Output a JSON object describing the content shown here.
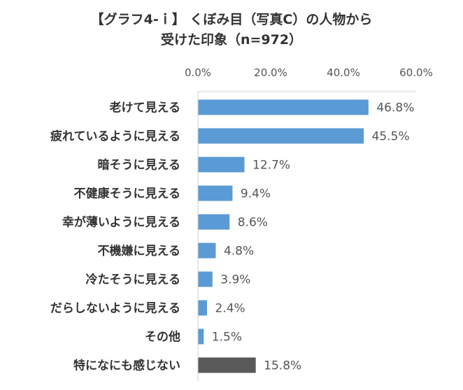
{
  "title_lines": [
    "【グラフ4-ｉ】 くぼみ目（写真C）の人物から",
    "受けた印象（n=972）"
  ],
  "colors": {
    "default": "#5b9bd5",
    "highlight": "#595959"
  },
  "chart_data": {
    "type": "bar",
    "orientation": "horizontal",
    "title": "【グラフ4-ｉ】 くぼみ目（写真C）の人物から受けた印象（n=972）",
    "categories": [
      "老けて見える",
      "疲れているように見える",
      "暗そうに見える",
      "不健康そうに見える",
      "幸が薄いように見える",
      "不機嫌に見える",
      "冷たそうに見える",
      "だらしないように見える",
      "その他",
      "特になにも感じない"
    ],
    "values": [
      46.8,
      45.5,
      12.7,
      9.4,
      8.6,
      4.8,
      3.9,
      2.4,
      1.5,
      15.8
    ],
    "value_labels": [
      "46.8%",
      "45.5%",
      "12.7%",
      "9.4%",
      "8.6%",
      "4.8%",
      "3.9%",
      "2.4%",
      "1.5%",
      "15.8%"
    ],
    "bar_colors": [
      "#5b9bd5",
      "#5b9bd5",
      "#5b9bd5",
      "#5b9bd5",
      "#5b9bd5",
      "#5b9bd5",
      "#5b9bd5",
      "#5b9bd5",
      "#5b9bd5",
      "#595959"
    ],
    "xlim": [
      0,
      60
    ],
    "xticks": [
      0,
      20,
      40,
      60
    ],
    "xtick_labels": [
      "0.0%",
      "20.0%",
      "40.0%",
      "60.0%"
    ],
    "xaxis_position": "top",
    "grid": false,
    "legend": "none"
  }
}
